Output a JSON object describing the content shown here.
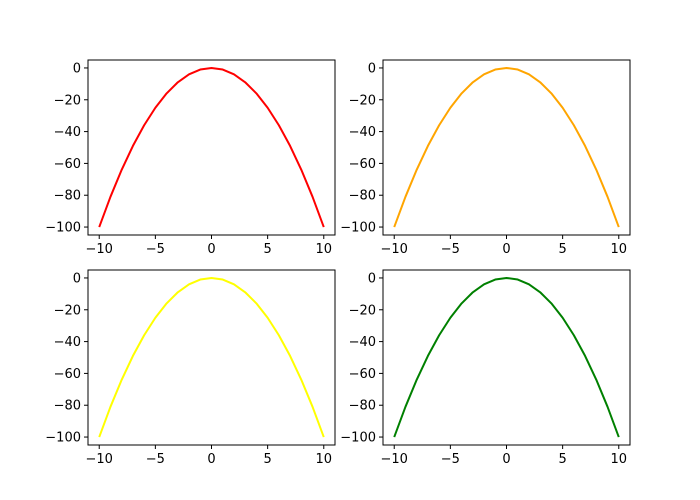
{
  "chart_data": [
    {
      "type": "line",
      "color": "#ff0000",
      "xlim": [
        -11,
        11
      ],
      "ylim": [
        -105,
        5
      ],
      "xticks": [
        -10,
        -5,
        0,
        5,
        10
      ],
      "yticks": [
        0,
        -20,
        -40,
        -60,
        -80,
        -100
      ],
      "xtick_labels": [
        "−10",
        "−5",
        "0",
        "5",
        "10"
      ],
      "ytick_labels": [
        "0",
        "−20",
        "−40",
        "−60",
        "−80",
        "−100"
      ],
      "x": [
        -10,
        -9,
        -8,
        -7,
        -6,
        -5,
        -4,
        -3,
        -2,
        -1,
        0,
        1,
        2,
        3,
        4,
        5,
        6,
        7,
        8,
        9,
        10
      ],
      "y": [
        -100,
        -81,
        -64,
        -49,
        -36,
        -25,
        -16,
        -9,
        -4,
        -1,
        0,
        -1,
        -4,
        -9,
        -16,
        -25,
        -36,
        -49,
        -64,
        -81,
        -100
      ],
      "grid": false
    },
    {
      "type": "line",
      "color": "#ffa500",
      "xlim": [
        -11,
        11
      ],
      "ylim": [
        -105,
        5
      ],
      "xticks": [
        -10,
        -5,
        0,
        5,
        10
      ],
      "yticks": [
        0,
        -20,
        -40,
        -60,
        -80,
        -100
      ],
      "xtick_labels": [
        "−10",
        "−5",
        "0",
        "5",
        "10"
      ],
      "ytick_labels": [
        "0",
        "−20",
        "−40",
        "−60",
        "−80",
        "−100"
      ],
      "x": [
        -10,
        -9,
        -8,
        -7,
        -6,
        -5,
        -4,
        -3,
        -2,
        -1,
        0,
        1,
        2,
        3,
        4,
        5,
        6,
        7,
        8,
        9,
        10
      ],
      "y": [
        -100,
        -81,
        -64,
        -49,
        -36,
        -25,
        -16,
        -9,
        -4,
        -1,
        0,
        -1,
        -4,
        -9,
        -16,
        -25,
        -36,
        -49,
        -64,
        -81,
        -100
      ],
      "grid": false
    },
    {
      "type": "line",
      "color": "#ffff00",
      "xlim": [
        -11,
        11
      ],
      "ylim": [
        -105,
        5
      ],
      "xticks": [
        -10,
        -5,
        0,
        5,
        10
      ],
      "yticks": [
        0,
        -20,
        -40,
        -60,
        -80,
        -100
      ],
      "xtick_labels": [
        "−10",
        "−5",
        "0",
        "5",
        "10"
      ],
      "ytick_labels": [
        "0",
        "−20",
        "−40",
        "−60",
        "−80",
        "−100"
      ],
      "x": [
        -10,
        -9,
        -8,
        -7,
        -6,
        -5,
        -4,
        -3,
        -2,
        -1,
        0,
        1,
        2,
        3,
        4,
        5,
        6,
        7,
        8,
        9,
        10
      ],
      "y": [
        -100,
        -81,
        -64,
        -49,
        -36,
        -25,
        -16,
        -9,
        -4,
        -1,
        0,
        -1,
        -4,
        -9,
        -16,
        -25,
        -36,
        -49,
        -64,
        -81,
        -100
      ],
      "grid": false
    },
    {
      "type": "line",
      "color": "#008000",
      "xlim": [
        -11,
        11
      ],
      "ylim": [
        -105,
        5
      ],
      "xticks": [
        -10,
        -5,
        0,
        5,
        10
      ],
      "yticks": [
        0,
        -20,
        -40,
        -60,
        -80,
        -100
      ],
      "xtick_labels": [
        "−10",
        "−5",
        "0",
        "5",
        "10"
      ],
      "ytick_labels": [
        "0",
        "−20",
        "−40",
        "−60",
        "−80",
        "−100"
      ],
      "x": [
        -10,
        -9,
        -8,
        -7,
        -6,
        -5,
        -4,
        -3,
        -2,
        -1,
        0,
        1,
        2,
        3,
        4,
        5,
        6,
        7,
        8,
        9,
        10
      ],
      "y": [
        -100,
        -81,
        -64,
        -49,
        -36,
        -25,
        -16,
        -9,
        -4,
        -1,
        0,
        -1,
        -4,
        -9,
        -16,
        -25,
        -36,
        -49,
        -64,
        -81,
        -100
      ],
      "grid": false
    }
  ]
}
